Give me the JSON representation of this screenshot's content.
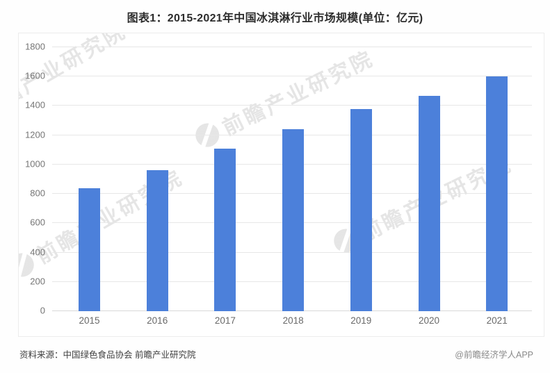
{
  "page": {
    "title": "图表1：2015-2021年中国冰淇淋行业市场规模(单位：亿元)",
    "source_note": "资料来源：中国绿色食品协会 前瞻产业研究院",
    "credit": "@前瞻经济学人APP",
    "watermark_text": "前瞻产业研究院"
  },
  "colors": {
    "bar": "#4C80DA",
    "gridline": "#e7e7e7",
    "axis_label": "#757575",
    "title_text": "#2d2d2d",
    "source_text": "#3f3f3f",
    "credit_text": "#8a8a8a",
    "watermark": "#cfcfcf",
    "card_border": "#ececec"
  },
  "chart_data": {
    "type": "bar",
    "title": "图表1：2015-2021年中国冰淇淋行业市场规模(单位：亿元)",
    "unit": "亿元",
    "categories": [
      "2015",
      "2016",
      "2017",
      "2018",
      "2019",
      "2020",
      "2021"
    ],
    "values": [
      840,
      960,
      1110,
      1240,
      1380,
      1470,
      1600
    ],
    "xlabel": "",
    "ylabel": "",
    "ylim": [
      0,
      1800
    ],
    "ytick_step": 200,
    "grid": true,
    "legend": false
  }
}
